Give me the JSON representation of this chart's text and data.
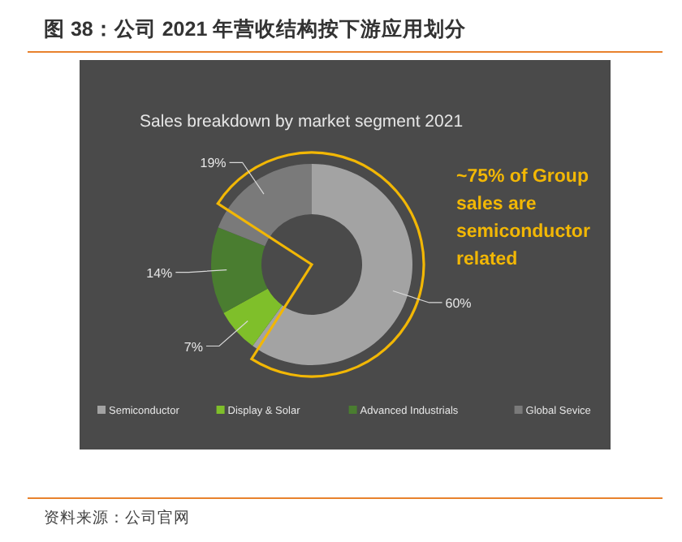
{
  "chart_data": {
    "type": "donut",
    "title": "图 38：公司 2021 年营收结构按下游应用划分",
    "subtitle": "Sales breakdown by market segment 2021",
    "categories": [
      "Semiconductor",
      "Display & Solar",
      "Advanced Industrials",
      "Global Sevice"
    ],
    "values": [
      60,
      7,
      14,
      19
    ],
    "value_labels": [
      "60%",
      "7%",
      "14%",
      "19%"
    ],
    "colors": [
      "#a3a3a3",
      "#7fbf2a",
      "#4a7d30",
      "#7a7a7a"
    ],
    "legend": "bottom",
    "annotations": [
      "~75% of Group sales are semiconductor related",
      "资料来源：公司官网"
    ]
  }
}
